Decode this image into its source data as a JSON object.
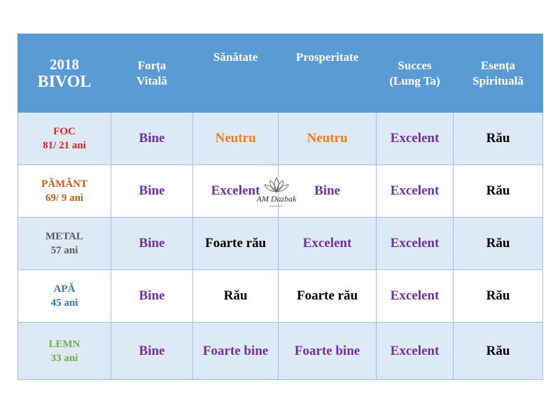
{
  "colors": {
    "header_bg": "#5b9bd5",
    "row_alt_bg": "#dde9f6",
    "good_text": "#7030a0",
    "neutral_text": "#f07c1a",
    "bad_text": "#000000"
  },
  "header": {
    "year": "2018",
    "sign": "BIVOL",
    "columns": [
      {
        "line1": "Forța",
        "line2": "Vitală"
      },
      {
        "line1": "Sănătate",
        "line2": ""
      },
      {
        "line1": "Prosperitate",
        "line2": ""
      },
      {
        "line1": "Succes",
        "line2": "(Lung Ta)"
      },
      {
        "line1": "Esența",
        "line2": "Spirituală"
      }
    ]
  },
  "rows": [
    {
      "element": "FOC",
      "age": "81/ 21 ani",
      "color": "#e02020",
      "values": [
        "Bine",
        "Neutru",
        "Neutru",
        "Excelent",
        "Rău"
      ],
      "tones": [
        "good",
        "neutral",
        "neutral",
        "good",
        "bad"
      ]
    },
    {
      "element": "PĂMÂNT",
      "age": "69/ 9 ani",
      "color": "#c55a11",
      "values": [
        "Bine",
        "Excelent",
        "Bine",
        "Excelent",
        "Rău"
      ],
      "tones": [
        "good",
        "good",
        "good",
        "good",
        "bad"
      ]
    },
    {
      "element": "METAL",
      "age": "57 ani",
      "color": "#595959",
      "values": [
        "Bine",
        "Foarte rău",
        "Excelent",
        "Excelent",
        "Rău"
      ],
      "tones": [
        "good",
        "bad",
        "good",
        "good",
        "bad"
      ]
    },
    {
      "element": "APĂ",
      "age": "45 ani",
      "color": "#2e75b6",
      "values": [
        "Bine",
        "Rău",
        "Foarte rău",
        "Excelent",
        "Rău"
      ],
      "tones": [
        "good",
        "bad",
        "bad",
        "good",
        "bad"
      ]
    },
    {
      "element": "LEMN",
      "age": "33 ani",
      "color": "#70ad47",
      "values": [
        "Bine",
        "Foarte bine",
        "Foarte bine",
        "Excelent",
        "Rău"
      ],
      "tones": [
        "good",
        "good",
        "good",
        "good",
        "bad"
      ]
    }
  ],
  "watermark": {
    "icon": "lotus-icon",
    "text": "AM Dazbak",
    "subtext": "GROUP"
  }
}
